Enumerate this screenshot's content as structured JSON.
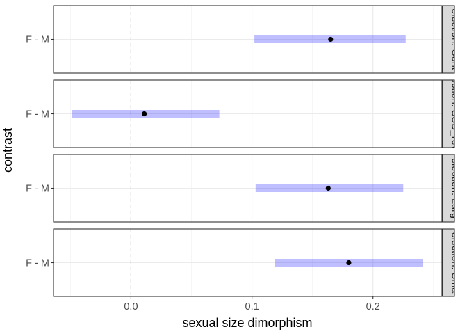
{
  "chart_data": {
    "type": "forest",
    "xlabel": "sexual size dimorphism",
    "ylabel": "contrast",
    "x_ticks": [
      0.0,
      0.1,
      0.2
    ],
    "x_tick_labels": [
      "0.0",
      "0.1",
      "0.2"
    ],
    "xlim": [
      -0.064,
      0.257
    ],
    "reference_line": 0,
    "grid": true,
    "colors": {
      "interval": "#0000ff",
      "point": "#000000",
      "strip_bg": "#d9d9d9"
    },
    "panels": [
      {
        "strip_label": "election: Cont",
        "contrast": "F - M",
        "estimate": 0.165,
        "lower": 0.102,
        "upper": 0.227
      },
      {
        "strip_label": "ection: SSD_rev",
        "contrast": "F - M",
        "estimate": 0.011,
        "lower": -0.049,
        "upper": 0.073
      },
      {
        "strip_label": "election: Larg",
        "contrast": "F - M",
        "estimate": 0.163,
        "lower": 0.103,
        "upper": 0.225
      },
      {
        "strip_label": "election: Sma",
        "contrast": "F - M",
        "estimate": 0.18,
        "lower": 0.119,
        "upper": 0.241
      }
    ]
  }
}
